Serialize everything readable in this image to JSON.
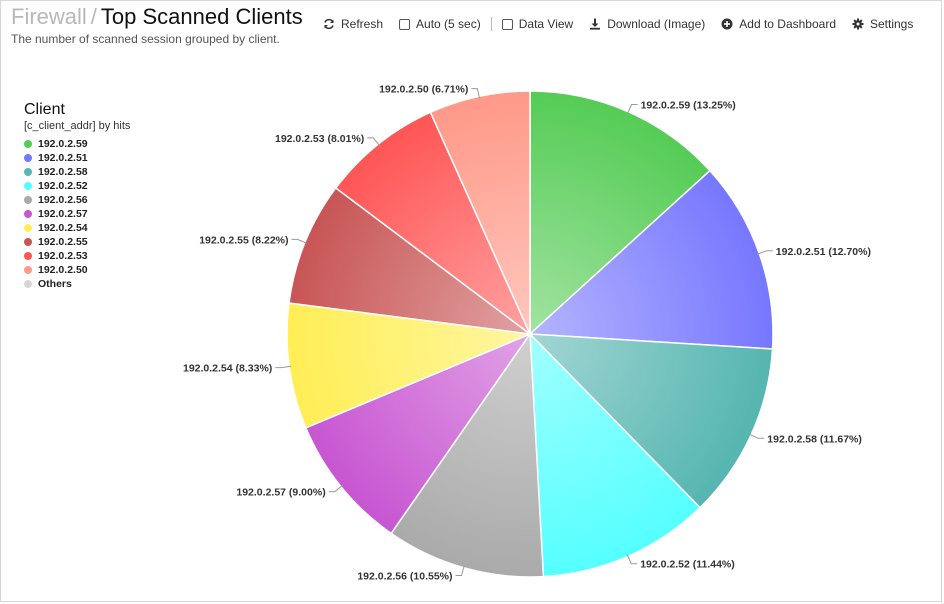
{
  "header": {
    "breadcrumb": "Firewall",
    "separator": "/",
    "title": "Top Scanned Clients",
    "subtitle": "The number of scanned session grouped by client."
  },
  "toolbar": {
    "refresh_label": "Refresh",
    "auto_label": "Auto (5 sec)",
    "data_view_label": "Data View",
    "download_label": "Download (Image)",
    "add_dashboard_label": "Add to Dashboard",
    "settings_label": "Settings"
  },
  "legend": {
    "title": "Client",
    "subtitle": "[c_client_addr] by hits",
    "others_label": "Others",
    "others_color": "#d6d6d6"
  },
  "chart_data": {
    "type": "pie",
    "categories": [
      "192.0.2.59",
      "192.0.2.51",
      "192.0.2.58",
      "192.0.2.52",
      "192.0.2.56",
      "192.0.2.57",
      "192.0.2.54",
      "192.0.2.55",
      "192.0.2.53",
      "192.0.2.50"
    ],
    "values": [
      13.25,
      12.7,
      11.67,
      11.44,
      10.55,
      9.0,
      8.33,
      8.22,
      8.01,
      6.71
    ],
    "labels": [
      "192.0.2.59 (13.25%)",
      "192.0.2.51 (12.70%)",
      "192.0.2.58 (11.67%)",
      "192.0.2.52 (11.44%)",
      "192.0.2.56 (10.55%)",
      "192.0.2.57 (9.00%)",
      "192.0.2.54 (8.33%)",
      "192.0.2.55 (8.22%)",
      "192.0.2.53 (8.01%)",
      "192.0.2.50 (6.71%)"
    ],
    "colors": [
      "#55cc55",
      "#7777ff",
      "#55b5b0",
      "#55ffff",
      "#aaaaaa",
      "#c855d2",
      "#ffee55",
      "#c85555",
      "#ff5555",
      "#ff9988"
    ],
    "legend_position": "top-left"
  }
}
